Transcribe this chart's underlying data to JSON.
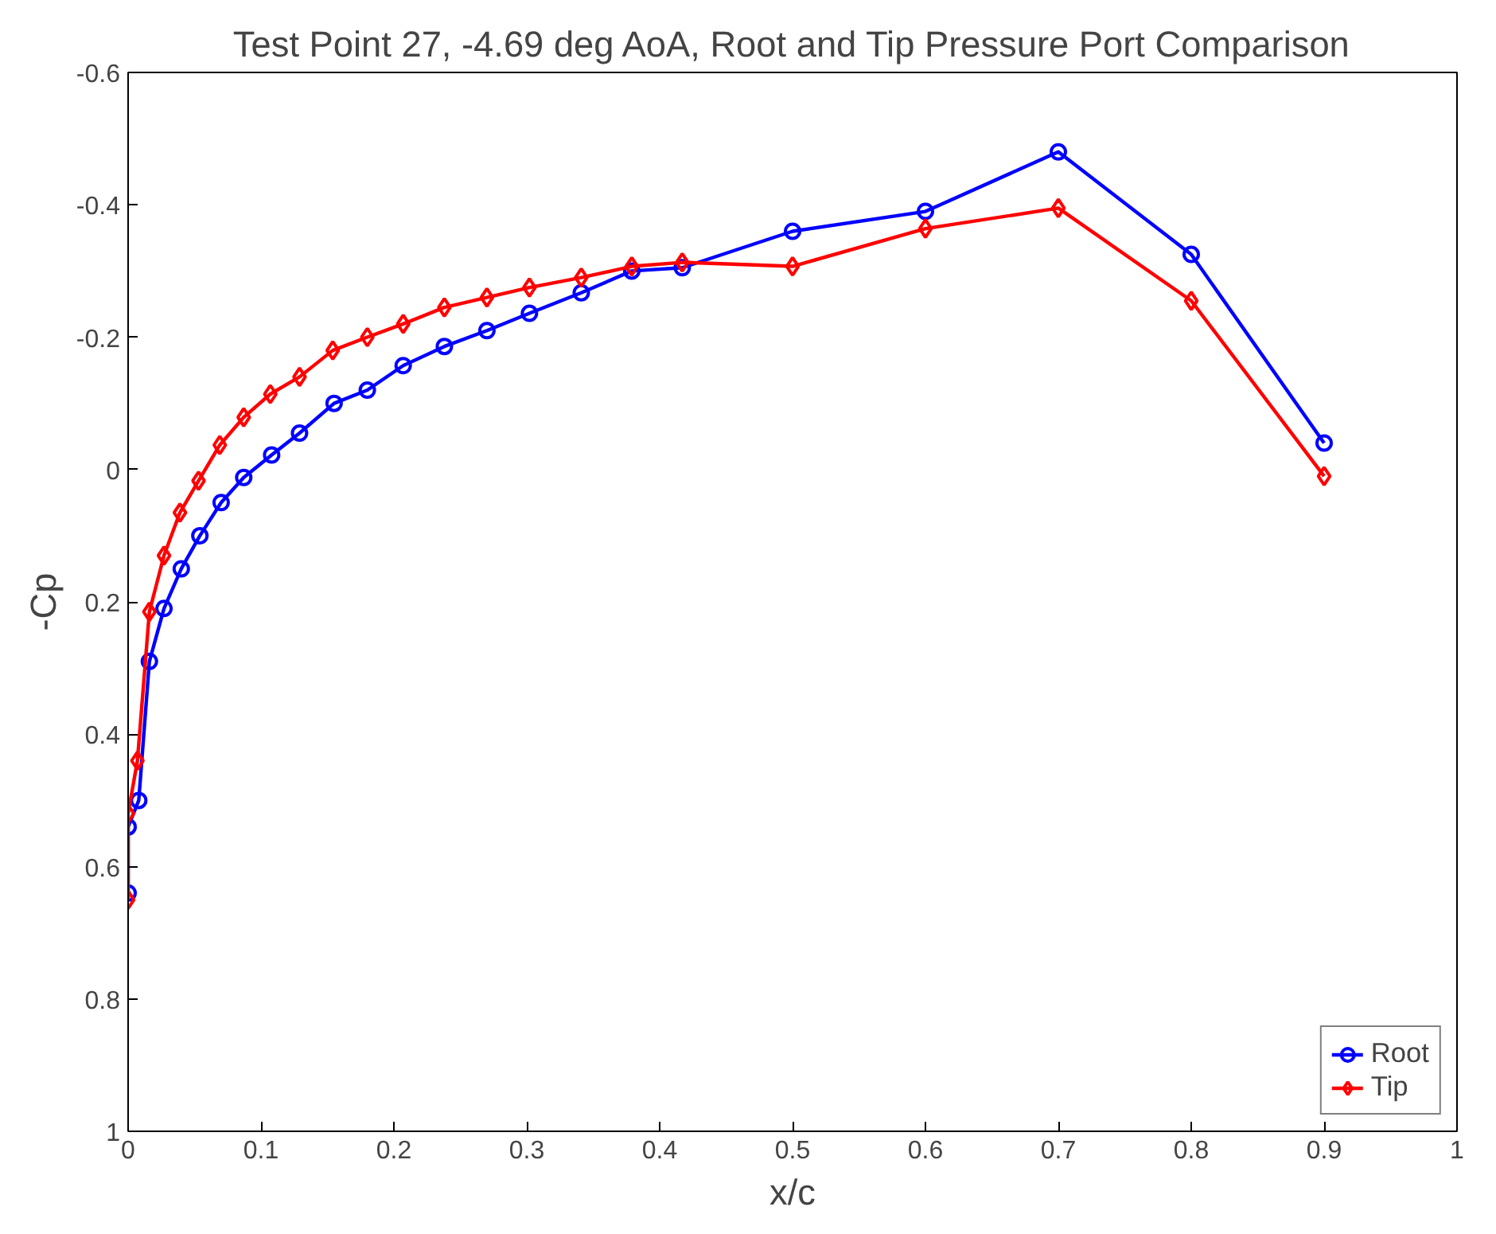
{
  "chart_data": {
    "type": "line",
    "title": "Test Point 27, -4.69 deg AoA, Root and Tip Pressure Port Comparison",
    "xlabel": "x/c",
    "ylabel": "-Cp",
    "xlim": [
      0,
      1
    ],
    "xticks": [
      0,
      0.1,
      0.2,
      0.3,
      0.4,
      0.5,
      0.6,
      0.7,
      0.8,
      0.9,
      1
    ],
    "ylim": [
      1,
      -0.6
    ],
    "yticks": [
      -0.6,
      -0.4,
      -0.2,
      0,
      0.2,
      0.4,
      0.6,
      0.8,
      1
    ],
    "grid": false,
    "legend": "bottom right",
    "line_style": "solid",
    "series": [
      {
        "name": "Root",
        "color": "#0000ff",
        "marker": "circle",
        "x": [
          0,
          0,
          0.008,
          0.016,
          0.027,
          0.04,
          0.054,
          0.07,
          0.087,
          0.108,
          0.129,
          0.155,
          0.18,
          0.207,
          0.238,
          0.27,
          0.302,
          0.341,
          0.379,
          0.417,
          0.5,
          0.6,
          0.7,
          0.8,
          0.9
        ],
        "values": [
          0.64,
          0.54,
          0.5,
          0.29,
          0.21,
          0.15,
          0.1,
          0.05,
          0.012,
          -0.022,
          -0.055,
          -0.1,
          -0.12,
          -0.157,
          -0.186,
          -0.21,
          -0.236,
          -0.267,
          -0.3,
          -0.305,
          -0.36,
          -0.39,
          -0.48,
          -0.325,
          -0.04
        ]
      },
      {
        "name": "Tip",
        "color": "#ff0000",
        "marker": "diamond",
        "x": [
          0,
          0,
          0.007,
          0.016,
          0.027,
          0.039,
          0.053,
          0.069,
          0.087,
          0.107,
          0.129,
          0.154,
          0.18,
          0.207,
          0.238,
          0.27,
          0.302,
          0.341,
          0.379,
          0.417,
          0.5,
          0.6,
          0.7,
          0.8,
          0.9
        ],
        "values": [
          0.65,
          0.52,
          0.44,
          0.215,
          0.13,
          0.065,
          0.017,
          -0.037,
          -0.079,
          -0.114,
          -0.14,
          -0.18,
          -0.2,
          -0.22,
          -0.245,
          -0.26,
          -0.275,
          -0.29,
          -0.307,
          -0.313,
          -0.307,
          -0.364,
          -0.395,
          -0.255,
          0.01
        ]
      }
    ]
  }
}
